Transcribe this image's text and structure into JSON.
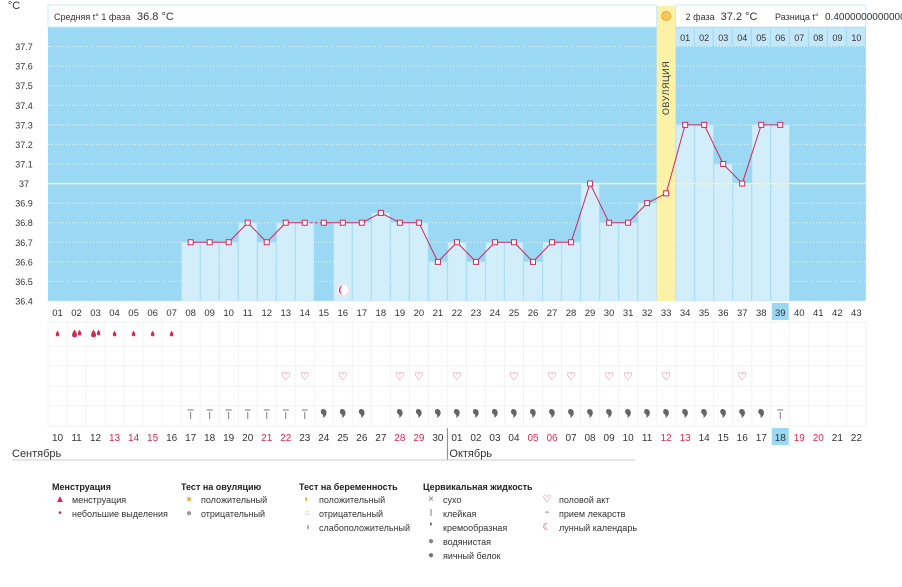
{
  "axis_unit": "°C",
  "y_ticks": [
    "36.4",
    "36.5",
    "36.6",
    "36.7",
    "36.8",
    "36.9",
    "37",
    "37.1",
    "37.2",
    "37.3",
    "37.4",
    "37.5",
    "37.6",
    "37.7"
  ],
  "phase1": {
    "label": "Средняя t° 1 фаза",
    "value": "36.8 °C"
  },
  "phase2": {
    "label": "2 фаза",
    "value": "37.2 °C"
  },
  "difference": {
    "label": "Разница t°",
    "value": "0.4000000000000"
  },
  "ovulation_label": "ОВУЛЯЦИЯ",
  "top_day_labels": [
    "01",
    "02",
    "03",
    "04",
    "05",
    "06",
    "07",
    "08",
    "09",
    "10"
  ],
  "cycle_days": [
    "01",
    "02",
    "03",
    "04",
    "05",
    "06",
    "07",
    "08",
    "09",
    "10",
    "11",
    "12",
    "13",
    "14",
    "15",
    "16",
    "17",
    "18",
    "19",
    "20",
    "21",
    "22",
    "23",
    "24",
    "25",
    "26",
    "27",
    "28",
    "29",
    "30",
    "31",
    "32",
    "33",
    "34",
    "35",
    "36",
    "37",
    "38",
    "39",
    "40",
    "41",
    "42",
    "43"
  ],
  "current_cycle_day": "39",
  "dates": [
    "10",
    "11",
    "12",
    "13",
    "14",
    "15",
    "16",
    "17",
    "18",
    "19",
    "20",
    "21",
    "22",
    "23",
    "24",
    "25",
    "26",
    "27",
    "28",
    "29",
    "30",
    "01",
    "02",
    "03",
    "04",
    "05",
    "06",
    "07",
    "08",
    "09",
    "10",
    "11",
    "12",
    "13",
    "14",
    "15",
    "16",
    "17",
    "18",
    "19",
    "20",
    "21",
    "22"
  ],
  "red_date_indices": [
    3,
    4,
    5,
    11,
    12,
    18,
    19,
    25,
    26,
    32,
    33,
    39,
    40
  ],
  "today_date": "18",
  "month_labels": [
    "Сентябрь",
    "Октябрь"
  ],
  "colors": {
    "chart_bg": "#9ad8f4",
    "bar": "#d2eefb",
    "bar_edge": "#bfe3f5",
    "line": "#cc2a5c",
    "ovulation": "#fbf2a8",
    "today": "#9ad8f4",
    "red": "#d42a55",
    "grid": "#ffffff",
    "avg_line": "#f8f3b8"
  },
  "chart_data": {
    "type": "line",
    "title": "",
    "xlabel": "",
    "ylabel": "°C",
    "ylim": [
      36.4,
      37.8
    ],
    "x": [
      8,
      9,
      10,
      11,
      12,
      13,
      14,
      15,
      16,
      17,
      18,
      19,
      20,
      21,
      22,
      23,
      24,
      25,
      26,
      27,
      28,
      29,
      30,
      31,
      32,
      33,
      34,
      35,
      36,
      37,
      38,
      39
    ],
    "series": [
      {
        "values": [
          36.7,
          36.7,
          36.7,
          36.8,
          36.7,
          36.8,
          36.8,
          36.8,
          36.8,
          36.8,
          36.85,
          36.8,
          36.8,
          36.6,
          36.7,
          36.6,
          36.7,
          36.7,
          36.6,
          36.7,
          36.7,
          37.0,
          36.8,
          36.8,
          36.9,
          36.95,
          37.3,
          37.3,
          37.1,
          37.0,
          37.3,
          37.3
        ]
      }
    ],
    "missing_bar_days": [
      15
    ],
    "dashed_segment_days": [
      14,
      15
    ],
    "ovulation_day": 33,
    "average_lines": [
      37.0
    ]
  },
  "symbols": {
    "menstruation_heavy_days": [
      2,
      3
    ],
    "menstruation_light_days": [
      1,
      4,
      5,
      6,
      7
    ],
    "intercourse_days": [
      13,
      14,
      16,
      19,
      20,
      22,
      25,
      27,
      28,
      30,
      31,
      33,
      37
    ],
    "sticky_days": [
      8,
      9,
      10,
      11,
      12,
      13,
      14,
      39
    ],
    "creamy_days": [
      15,
      16,
      17,
      19,
      20,
      21,
      22,
      23,
      24,
      25,
      26,
      27,
      28,
      29,
      30,
      31,
      32,
      33,
      34,
      35,
      36,
      37,
      38
    ],
    "lunar_day": 16
  },
  "legend": [
    {
      "heading": "Менструация",
      "items": [
        {
          "icon": "heavy-drop-icon",
          "label": "менструация"
        },
        {
          "icon": "small-drop-icon",
          "label": "небольшие выделения"
        }
      ]
    },
    {
      "heading": "Тест на овуляцию",
      "items": [
        {
          "icon": "sun-positive-icon",
          "label": "положительный"
        },
        {
          "icon": "sun-negative-icon",
          "label": "отрицательный"
        }
      ]
    },
    {
      "heading": "Тест на беременность",
      "items": [
        {
          "icon": "pregnancy-positive-icon",
          "label": "положительный"
        },
        {
          "icon": "pregnancy-negative-icon",
          "label": "отрицательный"
        },
        {
          "icon": "pregnancy-weak-icon",
          "label": "слабоположительный"
        }
      ]
    },
    {
      "heading": "Цервикальная жидкость",
      "items": [
        {
          "icon": "dry-icon",
          "label": "сухо"
        },
        {
          "icon": "sticky-icon",
          "label": "клейкая"
        },
        {
          "icon": "creamy-icon",
          "label": "кремообразная"
        },
        {
          "icon": "watery-icon",
          "label": "водянистая"
        },
        {
          "icon": "eggwhite-icon",
          "label": "яичный белок"
        }
      ]
    },
    {
      "heading": "",
      "items": [
        {
          "icon": "heart-icon",
          "label": "половой акт"
        },
        {
          "icon": "pill-icon",
          "label": "прием лекарств"
        },
        {
          "icon": "lunar-calendar-icon",
          "label": "лунный календарь"
        }
      ]
    }
  ]
}
